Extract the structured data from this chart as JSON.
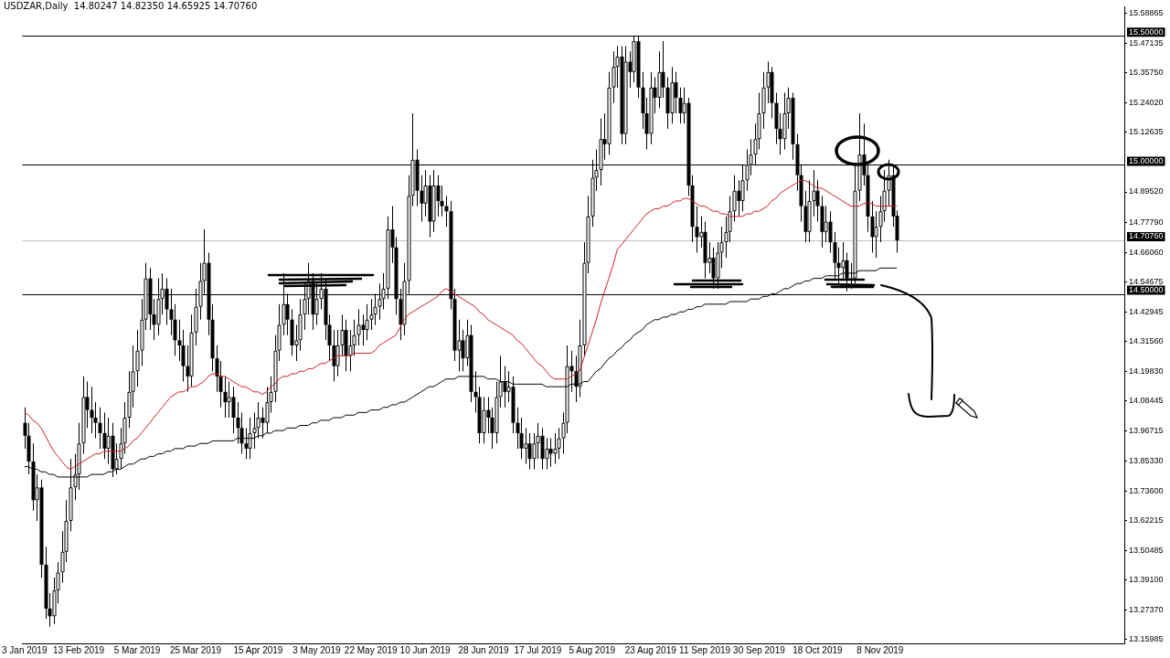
{
  "chart_data": {
    "type": "candlestick",
    "title": "USDZAR,Daily  14.80247 14.82350 14.65925 14.70760",
    "categories": [
      "3 Jan 2019",
      null,
      null,
      null,
      null,
      null,
      null,
      null,
      null,
      null,
      null,
      null,
      null,
      "13 Feb 2019",
      null,
      null,
      null,
      null,
      null,
      null,
      null,
      null,
      null,
      null,
      null,
      null,
      null,
      "5 Mar 2019",
      null,
      null,
      null,
      null,
      null,
      null,
      null,
      null,
      null,
      null,
      null,
      null,
      null,
      "25 Mar 2019",
      null,
      null,
      null,
      null,
      null,
      null,
      null,
      null,
      null,
      null,
      null,
      null,
      null,
      null,
      "15 Apr 2019",
      null,
      null,
      null,
      null,
      null,
      null,
      null,
      null,
      null,
      null,
      null,
      null,
      null,
      "3 May 2019",
      null,
      null,
      null,
      null,
      null,
      null,
      null,
      null,
      null,
      null,
      null,
      null,
      "22 May 2019",
      null,
      null,
      null,
      null,
      null,
      null,
      null,
      null,
      null,
      null,
      null,
      null,
      "10 Jun 2019",
      null,
      null,
      null,
      null,
      null,
      null,
      null,
      null,
      null,
      null,
      null,
      null,
      null,
      "28 Jun 2019",
      null,
      null,
      null,
      null,
      null,
      null,
      null,
      null,
      null,
      null,
      null,
      null,
      "17 Jul 2019",
      null,
      null,
      null,
      null,
      null,
      null,
      null,
      null,
      null,
      null,
      null,
      null,
      "5 Aug 2019",
      null,
      null,
      null,
      null,
      null,
      null,
      null,
      null,
      null,
      null,
      null,
      null,
      null,
      "23 Aug 2019",
      null,
      null,
      null,
      null,
      null,
      null,
      null,
      null,
      null,
      null,
      null,
      null,
      "11 Sep 2019",
      null,
      null,
      null,
      null,
      null,
      null,
      null,
      null,
      null,
      null,
      null,
      null,
      "30 Sep 2019",
      null,
      null,
      null,
      null,
      null,
      null,
      null,
      null,
      null,
      null,
      null,
      null,
      null,
      "18 Oct 2019",
      null,
      null,
      null,
      null,
      null,
      null,
      null,
      null,
      null,
      null,
      null,
      null,
      null,
      null,
      "8 Nov 2019",
      null,
      null,
      null,
      null,
      null,
      null,
      null,
      null,
      null,
      null,
      null,
      null,
      null,
      null,
      null,
      null,
      null,
      null,
      null,
      null,
      null,
      null,
      null,
      null,
      null,
      null,
      null,
      null,
      null,
      null,
      null,
      null,
      null,
      null,
      null,
      null,
      null,
      null,
      null,
      null,
      null,
      null,
      null,
      null,
      null,
      null,
      null,
      null,
      null,
      null,
      null,
      null,
      null,
      null,
      null,
      null,
      null,
      null
    ],
    "ohlc": [
      [
        14.0,
        14.06,
        13.9,
        13.95
      ],
      [
        13.95,
        14.0,
        13.8,
        13.85
      ],
      [
        13.85,
        13.92,
        13.66,
        13.7
      ],
      [
        13.7,
        13.8,
        13.62,
        13.75
      ],
      [
        13.75,
        13.78,
        13.4,
        13.45
      ],
      [
        13.45,
        13.52,
        13.24,
        13.28
      ],
      [
        13.28,
        13.34,
        13.21,
        13.25
      ],
      [
        13.25,
        13.4,
        13.22,
        13.35
      ],
      [
        13.35,
        13.46,
        13.3,
        13.42
      ],
      [
        13.42,
        13.58,
        13.38,
        13.5
      ],
      [
        13.5,
        13.7,
        13.46,
        13.62
      ],
      [
        13.62,
        13.86,
        13.58,
        13.75
      ],
      [
        13.75,
        13.88,
        13.7,
        13.8
      ],
      [
        13.8,
        14.0,
        13.74,
        13.92
      ],
      [
        13.92,
        14.18,
        13.88,
        14.1
      ],
      [
        14.1,
        14.16,
        13.98,
        14.05
      ],
      [
        14.05,
        14.14,
        13.96,
        14.02
      ],
      [
        14.02,
        14.08,
        13.94,
        14.0
      ],
      [
        14.0,
        14.06,
        13.9,
        13.96
      ],
      [
        13.96,
        14.04,
        13.86,
        13.9
      ],
      [
        13.9,
        14.02,
        13.84,
        13.95
      ],
      [
        13.95,
        14.0,
        13.79,
        13.82
      ],
      [
        13.82,
        13.92,
        13.8,
        13.86
      ],
      [
        13.86,
        13.98,
        13.82,
        13.92
      ],
      [
        13.92,
        14.08,
        13.88,
        14.02
      ],
      [
        14.02,
        14.2,
        13.98,
        14.12
      ],
      [
        14.12,
        14.3,
        14.06,
        14.2
      ],
      [
        14.2,
        14.36,
        14.14,
        14.28
      ],
      [
        14.28,
        14.48,
        14.22,
        14.4
      ],
      [
        14.4,
        14.62,
        14.36,
        14.56
      ],
      [
        14.56,
        14.6,
        14.36,
        14.42
      ],
      [
        14.42,
        14.48,
        14.32,
        14.38
      ],
      [
        14.38,
        14.56,
        14.34,
        14.48
      ],
      [
        14.48,
        14.58,
        14.42,
        14.52
      ],
      [
        14.52,
        14.56,
        14.38,
        14.44
      ],
      [
        14.44,
        14.52,
        14.34,
        14.4
      ],
      [
        14.4,
        14.46,
        14.26,
        14.32
      ],
      [
        14.32,
        14.4,
        14.24,
        14.3
      ],
      [
        14.3,
        14.36,
        14.16,
        14.22
      ],
      [
        14.22,
        14.3,
        14.12,
        14.18
      ],
      [
        14.18,
        14.42,
        14.14,
        14.35
      ],
      [
        14.35,
        14.52,
        14.3,
        14.45
      ],
      [
        14.45,
        14.62,
        14.4,
        14.55
      ],
      [
        14.55,
        14.75,
        14.5,
        14.62
      ],
      [
        14.62,
        14.66,
        14.34,
        14.4
      ],
      [
        14.4,
        14.46,
        14.2,
        14.25
      ],
      [
        14.25,
        14.3,
        14.12,
        14.18
      ],
      [
        14.18,
        14.24,
        14.06,
        14.12
      ],
      [
        14.12,
        14.18,
        14.02,
        14.08
      ],
      [
        14.08,
        14.16,
        14.02,
        14.1
      ],
      [
        14.1,
        14.14,
        13.96,
        14.02
      ],
      [
        14.02,
        14.08,
        13.92,
        13.98
      ],
      [
        13.98,
        14.04,
        13.88,
        13.92
      ],
      [
        13.92,
        13.98,
        13.86,
        13.9
      ],
      [
        13.9,
        14.02,
        13.86,
        13.96
      ],
      [
        13.96,
        14.04,
        13.9,
        13.98
      ],
      [
        13.98,
        14.08,
        13.94,
        14.02
      ],
      [
        14.02,
        14.06,
        13.94,
        14.0
      ],
      [
        14.0,
        14.14,
        13.96,
        14.08
      ],
      [
        14.08,
        14.18,
        14.04,
        14.12
      ],
      [
        14.12,
        14.34,
        14.08,
        14.28
      ],
      [
        14.28,
        14.46,
        14.24,
        14.38
      ],
      [
        14.38,
        14.58,
        14.34,
        14.46
      ],
      [
        14.46,
        14.5,
        14.34,
        14.4
      ],
      [
        14.4,
        14.44,
        14.26,
        14.3
      ],
      [
        14.3,
        14.38,
        14.24,
        14.32
      ],
      [
        14.32,
        14.48,
        14.28,
        14.42
      ],
      [
        14.42,
        14.54,
        14.36,
        14.48
      ],
      [
        14.48,
        14.62,
        14.42,
        14.55
      ],
      [
        14.55,
        14.58,
        14.36,
        14.42
      ],
      [
        14.42,
        14.54,
        14.38,
        14.48
      ],
      [
        14.48,
        14.58,
        14.44,
        14.52
      ],
      [
        14.52,
        14.56,
        14.32,
        14.38
      ],
      [
        14.38,
        14.42,
        14.24,
        14.3
      ],
      [
        14.3,
        14.36,
        14.16,
        14.22
      ],
      [
        14.22,
        14.36,
        14.18,
        14.3
      ],
      [
        14.3,
        14.42,
        14.26,
        14.36
      ],
      [
        14.36,
        14.4,
        14.2,
        14.26
      ],
      [
        14.26,
        14.36,
        14.2,
        14.3
      ],
      [
        14.3,
        14.4,
        14.26,
        14.34
      ],
      [
        14.34,
        14.44,
        14.3,
        14.38
      ],
      [
        14.38,
        14.42,
        14.3,
        14.36
      ],
      [
        14.36,
        14.46,
        14.32,
        14.4
      ],
      [
        14.4,
        14.48,
        14.36,
        14.42
      ],
      [
        14.42,
        14.5,
        14.38,
        14.45
      ],
      [
        14.45,
        14.54,
        14.4,
        14.48
      ],
      [
        14.48,
        14.58,
        14.44,
        14.52
      ],
      [
        14.52,
        14.8,
        14.48,
        14.75
      ],
      [
        14.75,
        14.84,
        14.62,
        14.68
      ],
      [
        14.68,
        14.72,
        14.42,
        14.48
      ],
      [
        14.48,
        14.52,
        14.32,
        14.38
      ],
      [
        14.38,
        14.62,
        14.34,
        14.55
      ],
      [
        14.55,
        14.96,
        14.5,
        14.88
      ],
      [
        14.88,
        15.2,
        14.84,
        15.02
      ],
      [
        15.02,
        15.06,
        14.84,
        14.9
      ],
      [
        14.9,
        14.96,
        14.78,
        14.85
      ],
      [
        14.85,
        14.98,
        14.8,
        14.92
      ],
      [
        14.92,
        14.96,
        14.72,
        14.78
      ],
      [
        14.78,
        14.98,
        14.74,
        14.92
      ],
      [
        14.92,
        14.96,
        14.8,
        14.86
      ],
      [
        14.86,
        14.92,
        14.8,
        14.84
      ],
      [
        14.84,
        14.88,
        14.76,
        14.82
      ],
      [
        14.82,
        14.86,
        14.44,
        14.48
      ],
      [
        14.48,
        14.52,
        14.24,
        14.28
      ],
      [
        14.28,
        14.4,
        14.2,
        14.32
      ],
      [
        14.32,
        14.36,
        14.2,
        14.25
      ],
      [
        14.25,
        14.4,
        14.22,
        14.34
      ],
      [
        14.34,
        14.38,
        14.08,
        14.12
      ],
      [
        14.12,
        14.2,
        14.04,
        14.1
      ],
      [
        14.1,
        14.14,
        13.92,
        13.96
      ],
      [
        13.96,
        14.1,
        13.92,
        14.05
      ],
      [
        14.05,
        14.1,
        13.96,
        14.02
      ],
      [
        14.02,
        14.06,
        13.9,
        13.96
      ],
      [
        13.96,
        14.16,
        13.92,
        14.1
      ],
      [
        14.1,
        14.26,
        14.06,
        14.16
      ],
      [
        14.16,
        14.22,
        14.06,
        14.12
      ],
      [
        14.12,
        14.2,
        14.08,
        14.14
      ],
      [
        14.14,
        14.18,
        13.96,
        14.0
      ],
      [
        14.0,
        14.06,
        13.9,
        13.96
      ],
      [
        13.96,
        14.02,
        13.86,
        13.9
      ],
      [
        13.9,
        13.98,
        13.84,
        13.92
      ],
      [
        13.92,
        13.96,
        13.82,
        13.86
      ],
      [
        13.86,
        13.96,
        13.82,
        13.92
      ],
      [
        13.92,
        14.0,
        13.86,
        13.95
      ],
      [
        13.95,
        13.98,
        13.82,
        13.86
      ],
      [
        13.86,
        13.94,
        13.82,
        13.9
      ],
      [
        13.9,
        13.94,
        13.83,
        13.88
      ],
      [
        13.88,
        13.96,
        13.84,
        13.9
      ],
      [
        13.9,
        13.98,
        13.86,
        13.94
      ],
      [
        13.94,
        14.04,
        13.88,
        14.0
      ],
      [
        14.0,
        14.3,
        13.96,
        14.22
      ],
      [
        14.22,
        14.28,
        14.12,
        14.2
      ],
      [
        14.2,
        14.26,
        14.08,
        14.14
      ],
      [
        14.14,
        14.4,
        14.1,
        14.3
      ],
      [
        14.3,
        14.7,
        14.26,
        14.62
      ],
      [
        14.62,
        14.88,
        14.58,
        14.8
      ],
      [
        14.8,
        15.02,
        14.76,
        14.95
      ],
      [
        14.95,
        15.06,
        14.9,
        14.98
      ],
      [
        14.98,
        15.18,
        14.92,
        15.1
      ],
      [
        15.1,
        15.2,
        15.02,
        15.08
      ],
      [
        15.08,
        15.36,
        15.04,
        15.3
      ],
      [
        15.3,
        15.44,
        15.24,
        15.38
      ],
      [
        15.38,
        15.46,
        15.3,
        15.42
      ],
      [
        15.42,
        15.46,
        15.08,
        15.12
      ],
      [
        15.12,
        15.46,
        15.08,
        15.4
      ],
      [
        15.4,
        15.44,
        15.3,
        15.36
      ],
      [
        15.36,
        15.5,
        15.32,
        15.48
      ],
      [
        15.48,
        15.5,
        15.26,
        15.3
      ],
      [
        15.3,
        15.36,
        15.14,
        15.2
      ],
      [
        15.2,
        15.26,
        15.06,
        15.12
      ],
      [
        15.12,
        15.36,
        15.08,
        15.3
      ],
      [
        15.3,
        15.34,
        15.2,
        15.26
      ],
      [
        15.26,
        15.44,
        15.22,
        15.36
      ],
      [
        15.36,
        15.48,
        15.26,
        15.3
      ],
      [
        15.3,
        15.34,
        15.14,
        15.2
      ],
      [
        15.2,
        15.38,
        15.16,
        15.32
      ],
      [
        15.32,
        15.36,
        15.2,
        15.26
      ],
      [
        15.26,
        15.3,
        15.16,
        15.2
      ],
      [
        15.2,
        15.3,
        15.16,
        15.24
      ],
      [
        15.24,
        15.26,
        14.88,
        14.92
      ],
      [
        14.92,
        14.96,
        14.7,
        14.76
      ],
      [
        14.76,
        14.84,
        14.66,
        14.72
      ],
      [
        14.72,
        14.8,
        14.68,
        14.74
      ],
      [
        14.74,
        14.78,
        14.56,
        14.62
      ],
      [
        14.62,
        14.7,
        14.58,
        14.64
      ],
      [
        14.64,
        14.68,
        14.52,
        14.56
      ],
      [
        14.56,
        14.7,
        14.52,
        14.66
      ],
      [
        14.66,
        14.76,
        14.6,
        14.7
      ],
      [
        14.7,
        14.8,
        14.64,
        14.74
      ],
      [
        14.74,
        14.88,
        14.7,
        14.82
      ],
      [
        14.82,
        14.96,
        14.78,
        14.9
      ],
      [
        14.9,
        14.94,
        14.8,
        14.86
      ],
      [
        14.86,
        15.0,
        14.82,
        14.94
      ],
      [
        14.94,
        15.06,
        14.9,
        15.0
      ],
      [
        15.0,
        15.1,
        14.96,
        15.04
      ],
      [
        15.04,
        15.16,
        15.0,
        15.1
      ],
      [
        15.1,
        15.28,
        15.06,
        15.2
      ],
      [
        15.2,
        15.36,
        15.14,
        15.3
      ],
      [
        15.3,
        15.4,
        15.24,
        15.36
      ],
      [
        15.36,
        15.38,
        15.18,
        15.24
      ],
      [
        15.24,
        15.28,
        15.08,
        15.14
      ],
      [
        15.14,
        15.2,
        15.04,
        15.1
      ],
      [
        15.1,
        15.28,
        15.06,
        15.2
      ],
      [
        15.2,
        15.3,
        15.14,
        15.26
      ],
      [
        15.26,
        15.28,
        15.02,
        15.08
      ],
      [
        15.08,
        15.12,
        14.9,
        14.96
      ],
      [
        14.96,
        15.0,
        14.78,
        14.84
      ],
      [
        14.84,
        14.9,
        14.7,
        14.74
      ],
      [
        14.74,
        14.94,
        14.7,
        14.86
      ],
      [
        14.86,
        14.98,
        14.8,
        14.9
      ],
      [
        14.9,
        14.94,
        14.78,
        14.84
      ],
      [
        14.84,
        14.88,
        14.68,
        14.74
      ],
      [
        14.74,
        14.84,
        14.7,
        14.78
      ],
      [
        14.78,
        14.82,
        14.66,
        14.7
      ],
      [
        14.7,
        14.74,
        14.56,
        14.62
      ],
      [
        14.62,
        14.68,
        14.54,
        14.6
      ],
      [
        14.6,
        14.7,
        14.56,
        14.63
      ],
      [
        14.63,
        14.66,
        14.51,
        14.56
      ],
      [
        14.56,
        14.62,
        14.52,
        14.56
      ],
      [
        14.56,
        15.0,
        14.54,
        14.9
      ],
      [
        14.9,
        15.2,
        14.86,
        15.04
      ],
      [
        15.04,
        15.16,
        14.92,
        14.96
      ],
      [
        14.96,
        15.0,
        14.74,
        14.8
      ],
      [
        14.8,
        14.86,
        14.66,
        14.72
      ],
      [
        14.72,
        14.82,
        14.64,
        14.76
      ],
      [
        14.76,
        14.88,
        14.7,
        14.82
      ],
      [
        14.82,
        14.98,
        14.78,
        14.9
      ],
      [
        14.9,
        15.02,
        14.84,
        14.96
      ],
      [
        14.96,
        15.0,
        14.76,
        14.8
      ],
      [
        14.80247,
        14.8235,
        14.65925,
        14.7076
      ],
      null,
      null,
      null,
      null,
      null,
      null,
      null,
      null,
      null,
      null,
      null,
      null,
      null,
      null,
      null,
      null,
      null,
      null,
      null,
      null,
      null,
      null,
      null,
      null,
      null,
      null,
      null,
      null,
      null,
      null,
      null,
      null,
      null,
      null,
      null,
      null,
      null,
      null,
      null,
      null,
      null,
      null,
      null,
      null,
      null,
      null,
      null,
      null,
      null,
      null,
      null,
      null,
      null,
      null
    ],
    "series": [
      {
        "type": "line",
        "color": "#cc2222",
        "values": [
          14.04,
          14.03,
          14.01,
          14.0,
          13.98,
          13.95,
          13.92,
          13.89,
          13.87,
          13.85,
          13.83,
          13.82,
          13.83,
          13.84,
          13.85,
          13.86,
          13.87,
          13.88,
          13.88,
          13.89,
          13.89,
          13.89,
          13.89,
          13.89,
          13.9,
          13.91,
          13.93,
          13.94,
          13.96,
          13.98,
          14.0,
          14.02,
          14.04,
          14.06,
          14.08,
          14.1,
          14.11,
          14.12,
          14.12,
          14.13,
          14.14,
          14.14,
          14.15,
          14.16,
          14.18,
          14.19,
          14.19,
          14.18,
          14.18,
          14.17,
          14.16,
          14.15,
          14.14,
          14.14,
          14.13,
          14.12,
          14.12,
          14.11,
          14.12,
          14.14,
          14.15,
          14.17,
          14.18,
          14.18,
          14.19,
          14.19,
          14.2,
          14.2,
          14.21,
          14.21,
          14.22,
          14.23,
          14.23,
          14.24,
          14.25,
          14.26,
          14.26,
          14.26,
          14.26,
          14.27,
          14.27,
          14.27,
          14.27,
          14.27,
          14.28,
          14.3,
          14.31,
          14.32,
          14.33,
          14.34,
          14.37,
          14.4,
          14.42,
          14.43,
          14.44,
          14.45,
          14.46,
          14.47,
          14.48,
          14.49,
          14.51,
          14.52,
          14.51,
          14.5,
          14.49,
          14.48,
          14.47,
          14.46,
          14.45,
          14.43,
          14.42,
          14.4,
          14.39,
          14.38,
          14.37,
          14.36,
          14.35,
          14.34,
          14.32,
          14.31,
          14.29,
          14.27,
          14.25,
          14.23,
          14.22,
          14.2,
          14.18,
          14.17,
          14.17,
          14.17,
          14.17,
          14.18,
          14.19,
          14.2,
          14.25,
          14.3,
          14.35,
          14.4,
          14.46,
          14.51,
          14.56,
          14.61,
          14.67,
          14.69,
          14.71,
          14.73,
          14.75,
          14.77,
          14.79,
          14.81,
          14.82,
          14.83,
          14.83,
          14.84,
          14.84,
          14.85,
          14.86,
          14.86,
          14.87,
          14.87,
          14.86,
          14.85,
          14.84,
          14.84,
          14.83,
          14.82,
          14.82,
          14.81,
          14.81,
          14.8,
          14.8,
          14.8,
          14.8,
          14.81,
          14.81,
          14.82,
          14.82,
          14.83,
          14.84,
          14.86,
          14.87,
          14.89,
          14.9,
          14.91,
          14.92,
          14.93,
          14.94,
          14.94,
          14.93,
          14.92,
          14.91,
          14.91,
          14.9,
          14.89,
          14.88,
          14.87,
          14.86,
          14.85,
          14.84,
          14.84,
          14.84,
          14.85,
          14.85,
          14.85,
          14.84,
          14.84,
          14.84,
          14.84,
          14.84,
          14.84,
          null,
          null,
          null,
          null,
          null,
          null,
          null,
          null,
          null,
          null,
          null,
          null,
          null,
          null,
          null,
          null,
          null,
          null,
          null,
          null,
          null,
          null,
          null,
          null,
          null,
          null,
          null,
          null,
          null,
          null,
          null,
          null,
          null,
          null,
          null,
          null,
          null,
          null,
          null,
          null,
          null,
          null,
          null,
          null,
          null,
          null,
          null,
          null,
          null,
          null,
          null,
          null,
          null,
          null
        ]
      },
      {
        "type": "line",
        "color": "#000000",
        "values": [
          13.83,
          13.83,
          13.82,
          13.82,
          13.81,
          13.81,
          13.8,
          13.8,
          13.79,
          13.79,
          13.79,
          13.79,
          13.79,
          13.79,
          13.79,
          13.79,
          13.8,
          13.8,
          13.8,
          13.8,
          13.81,
          13.81,
          13.82,
          13.82,
          13.83,
          13.84,
          13.84,
          13.85,
          13.86,
          13.86,
          13.87,
          13.87,
          13.88,
          13.88,
          13.89,
          13.89,
          13.9,
          13.9,
          13.9,
          13.91,
          13.91,
          13.91,
          13.92,
          13.92,
          13.92,
          13.93,
          13.93,
          13.93,
          13.93,
          13.93,
          13.93,
          13.94,
          13.94,
          13.94,
          13.94,
          13.94,
          13.95,
          13.95,
          13.96,
          13.96,
          13.97,
          13.97,
          13.97,
          13.98,
          13.98,
          13.98,
          13.99,
          13.99,
          13.99,
          14.0,
          14.0,
          14.01,
          14.01,
          14.01,
          14.02,
          14.02,
          14.02,
          14.03,
          14.03,
          14.03,
          14.04,
          14.04,
          14.04,
          14.05,
          14.05,
          14.05,
          14.06,
          14.06,
          14.07,
          14.07,
          14.08,
          14.08,
          14.09,
          14.1,
          14.11,
          14.12,
          14.13,
          14.14,
          14.14,
          14.15,
          14.16,
          14.17,
          14.17,
          14.17,
          14.18,
          14.18,
          14.18,
          14.18,
          14.18,
          14.18,
          14.18,
          14.17,
          14.17,
          14.17,
          14.16,
          14.16,
          14.16,
          14.15,
          14.15,
          14.15,
          14.15,
          14.15,
          14.15,
          14.15,
          14.15,
          14.14,
          14.14,
          14.14,
          14.14,
          14.14,
          14.14,
          14.15,
          14.15,
          14.15,
          14.16,
          14.16,
          14.18,
          14.2,
          14.21,
          14.23,
          14.25,
          14.26,
          14.28,
          14.29,
          14.31,
          14.32,
          14.34,
          14.35,
          14.36,
          14.38,
          14.39,
          14.4,
          14.4,
          14.41,
          14.41,
          14.42,
          14.42,
          14.43,
          14.43,
          14.44,
          14.44,
          14.45,
          14.45,
          14.46,
          14.46,
          14.46,
          14.46,
          14.46,
          14.46,
          14.47,
          14.47,
          14.47,
          14.47,
          14.47,
          14.48,
          14.48,
          14.48,
          14.49,
          14.49,
          14.5,
          14.5,
          14.51,
          14.52,
          14.52,
          14.53,
          14.54,
          14.54,
          14.55,
          14.55,
          14.56,
          14.56,
          14.56,
          14.57,
          14.57,
          14.57,
          14.57,
          14.58,
          14.58,
          14.58,
          14.58,
          14.59,
          14.59,
          14.59,
          14.59,
          14.59,
          14.6,
          14.6,
          14.6,
          14.6,
          14.6,
          null,
          null,
          null,
          null,
          null,
          null,
          null,
          null,
          null,
          null,
          null,
          null,
          null,
          null,
          null,
          null,
          null,
          null,
          null,
          null,
          null,
          null,
          null,
          null,
          null,
          null,
          null,
          null,
          null,
          null,
          null,
          null,
          null,
          null,
          null,
          null,
          null,
          null,
          null,
          null,
          null,
          null,
          null,
          null,
          null,
          null,
          null,
          null,
          null,
          null,
          null,
          null,
          null,
          null
        ]
      }
    ],
    "ylim": [
      13.145,
      15.613
    ],
    "yticks": [
      {
        "value": 15.58865,
        "label": "15.58865"
      },
      {
        "value": 15.47135,
        "label": "15.47135"
      },
      {
        "value": 15.3575,
        "label": "15.35750"
      },
      {
        "value": 15.2402,
        "label": "15.24020"
      },
      {
        "value": 15.12635,
        "label": "15.12635"
      },
      {
        "value": 14.8952,
        "label": "14.89520"
      },
      {
        "value": 14.7779,
        "label": "14.77790"
      },
      {
        "value": 14.6606,
        "label": "14.66060"
      },
      {
        "value": 14.54675,
        "label": "14.54675"
      },
      {
        "value": 14.42945,
        "label": "14.42945"
      },
      {
        "value": 14.3156,
        "label": "14.31560"
      },
      {
        "value": 14.1983,
        "label": "14.19830"
      },
      {
        "value": 14.08445,
        "label": "14.08445"
      },
      {
        "value": 13.96715,
        "label": "13.96715"
      },
      {
        "value": 13.8533,
        "label": "13.85330"
      },
      {
        "value": 13.736,
        "label": "13.73600"
      },
      {
        "value": 13.62215,
        "label": "13.62215"
      },
      {
        "value": 13.50485,
        "label": "13.50485"
      },
      {
        "value": 13.391,
        "label": "13.39100"
      },
      {
        "value": 13.2737,
        "label": "13.27370"
      },
      {
        "value": 13.15985,
        "label": "13.15985"
      }
    ],
    "ref_lines": [
      {
        "axis": "y",
        "value": 15.5,
        "label": "15.50000",
        "color": "#000000"
      },
      {
        "axis": "y",
        "value": 15.0,
        "label": "15.00000",
        "color": "#000000"
      },
      {
        "axis": "y",
        "value": 14.7076,
        "label": "14.70760",
        "color": "#c0c0c0"
      },
      {
        "axis": "y",
        "value": 14.5,
        "label": "14.50000",
        "color": "#000000"
      }
    ]
  }
}
